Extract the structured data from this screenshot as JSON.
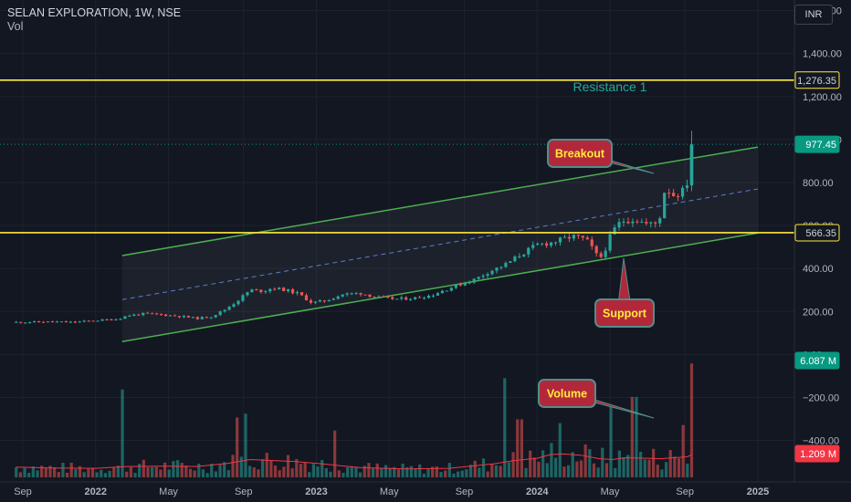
{
  "header": {
    "symbol_line": "SELAN EXPLORATION, 1W, NSE",
    "volume_label": "Vol"
  },
  "currency_button": "INR",
  "colors": {
    "background": "#131722",
    "up_candle": "#26a69a",
    "down_candle": "#ef5350",
    "channel_line": "#4caf50",
    "mid_line": "#5b7ec9",
    "horizontal_level": "#ffeb3b",
    "callout_fill": "#b2283a",
    "callout_border": "#4e8f8b",
    "callout_text": "#ffeb3b",
    "resistance_text": "#26a69a",
    "volume_ma": "#f23645",
    "price_badge": "#089981",
    "volume_badge": "#f23645"
  },
  "annotations": {
    "resistance": "Resistance 1",
    "breakout": "Breakout",
    "support": "Support",
    "volume": "Volume"
  },
  "chart_data": {
    "type": "candlestick",
    "timeframe": "1W",
    "price_axis": {
      "ticks": [
        "1,600.00",
        "1,400.00",
        "1,200.00",
        "1,000.00",
        "800.00",
        "600.00",
        "400.00",
        "200.00",
        "0.00",
        "−200.00",
        "−400.00"
      ],
      "tick_values": [
        1600,
        1400,
        1200,
        1000,
        800,
        600,
        400,
        200,
        0,
        -200,
        -400
      ],
      "range": [
        -420,
        1660
      ]
    },
    "time_axis": {
      "labels": [
        "Sep",
        "2022",
        "May",
        "Sep",
        "2023",
        "May",
        "Sep",
        "2024",
        "May",
        "Sep",
        "2025"
      ],
      "label_values": [
        2021.67,
        2022.0,
        2022.33,
        2022.67,
        2023.0,
        2023.33,
        2023.67,
        2024.0,
        2024.33,
        2024.67,
        2025.0
      ],
      "range": [
        2021.64,
        2025.22
      ]
    },
    "horizontal_levels": [
      {
        "value": 1276.35,
        "label": "1,276.35"
      },
      {
        "value": 566.35,
        "label": "566.35"
      }
    ],
    "badges": {
      "last_price": {
        "value": 977.45,
        "label": "977.45"
      },
      "volume": {
        "label": "6.087 M"
      },
      "volume_ma": {
        "label": "1.209 M"
      }
    },
    "channel": {
      "upper": [
        [
          2022.12,
          460
        ],
        [
          2025.0,
          965
        ]
      ],
      "middle": [
        [
          2022.12,
          255
        ],
        [
          2025.0,
          770
        ]
      ],
      "lower": [
        [
          2022.12,
          60
        ],
        [
          2025.0,
          565
        ]
      ]
    },
    "last_close_line": 977.45,
    "price_series": [
      [
        2021.64,
        150
      ],
      [
        2021.8,
        152
      ],
      [
        2021.9,
        150
      ],
      [
        2022.0,
        158
      ],
      [
        2022.1,
        165
      ],
      [
        2022.14,
        180
      ],
      [
        2022.22,
        190
      ],
      [
        2022.3,
        185
      ],
      [
        2022.38,
        178
      ],
      [
        2022.46,
        168
      ],
      [
        2022.52,
        175
      ],
      [
        2022.58,
        205
      ],
      [
        2022.64,
        248
      ],
      [
        2022.7,
        300
      ],
      [
        2022.76,
        295
      ],
      [
        2022.8,
        310
      ],
      [
        2022.86,
        300
      ],
      [
        2022.92,
        282
      ],
      [
        2022.98,
        240
      ],
      [
        2023.04,
        250
      ],
      [
        2023.12,
        280
      ],
      [
        2023.2,
        285
      ],
      [
        2023.28,
        265
      ],
      [
        2023.36,
        258
      ],
      [
        2023.44,
        262
      ],
      [
        2023.52,
        275
      ],
      [
        2023.58,
        300
      ],
      [
        2023.66,
        330
      ],
      [
        2023.72,
        350
      ],
      [
        2023.78,
        385
      ],
      [
        2023.86,
        420
      ],
      [
        2023.92,
        462
      ],
      [
        2024.0,
        510
      ],
      [
        2024.06,
        520
      ],
      [
        2024.1,
        530
      ],
      [
        2024.16,
        550
      ],
      [
        2024.22,
        535
      ],
      [
        2024.26,
        480
      ],
      [
        2024.28,
        440
      ],
      [
        2024.3,
        470
      ],
      [
        2024.34,
        570
      ],
      [
        2024.38,
        620
      ],
      [
        2024.44,
        630
      ],
      [
        2024.5,
        605
      ],
      [
        2024.54,
        610
      ],
      [
        2024.56,
        650
      ],
      [
        2024.58,
        780
      ],
      [
        2024.62,
        740
      ],
      [
        2024.66,
        760
      ],
      [
        2024.68,
        800
      ],
      [
        2024.7,
        977.45
      ]
    ],
    "volume_ma_series": [
      [
        2021.64,
        0.55
      ],
      [
        2021.8,
        0.5
      ],
      [
        2022.0,
        0.48
      ],
      [
        2022.14,
        0.58
      ],
      [
        2022.3,
        0.6
      ],
      [
        2022.46,
        0.58
      ],
      [
        2022.6,
        0.75
      ],
      [
        2022.7,
        0.95
      ],
      [
        2022.9,
        0.85
      ],
      [
        2023.0,
        0.75
      ],
      [
        2023.2,
        0.52
      ],
      [
        2023.4,
        0.45
      ],
      [
        2023.6,
        0.48
      ],
      [
        2023.7,
        0.6
      ],
      [
        2023.8,
        0.72
      ],
      [
        2023.9,
        0.9
      ],
      [
        2024.0,
        1.02
      ],
      [
        2024.06,
        1.22
      ],
      [
        2024.12,
        1.25
      ],
      [
        2024.2,
        1.18
      ],
      [
        2024.28,
        1.0
      ],
      [
        2024.34,
        0.95
      ],
      [
        2024.4,
        1.05
      ],
      [
        2024.5,
        1.02
      ],
      [
        2024.56,
        1.0
      ],
      [
        2024.62,
        1.05
      ],
      [
        2024.68,
        1.1
      ],
      [
        2024.7,
        1.209
      ]
    ]
  }
}
